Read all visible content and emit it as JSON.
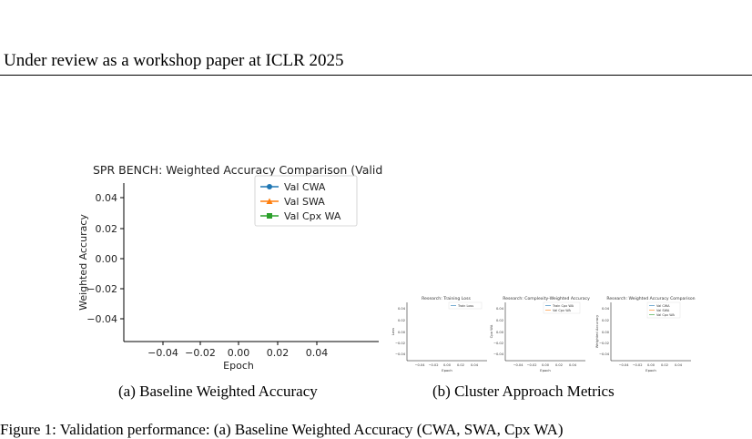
{
  "header": "Under review as a workshop paper at ICLR 2025",
  "figure_a": {
    "caption": "(a)  Baseline Weighted Accuracy",
    "title": "SPR BENCH: Weighted Accuracy Comparison (Validat",
    "xlabel": "Epoch",
    "ylabel": "Weighted Accuracy",
    "x_ticks": [
      "−0.04",
      "−0.02",
      "0.00",
      "0.02",
      "0.04"
    ],
    "y_ticks": [
      "0.04",
      "0.02",
      "0.00",
      "−0.02",
      "−0.04"
    ],
    "legend": [
      "Val CWA",
      "Val SWA",
      "Val Cpx WA"
    ],
    "colors": [
      "#1f77b4",
      "#ff7f0e",
      "#2ca02c"
    ]
  },
  "figure_b": {
    "caption": "(b)  Cluster Approach Metrics",
    "panels": [
      {
        "title": "Research: Training Loss",
        "xlabel": "Epoch",
        "ylabel": "Loss",
        "legend": [
          "Train Loss"
        ]
      },
      {
        "title": "Research: Complexity-Weighted Accuracy",
        "xlabel": "Epoch",
        "ylabel": "Cpx WA",
        "legend": [
          "Train Cpx WA",
          "Val Cpx WA"
        ]
      },
      {
        "title": "Research: Weighted Accuracy Comparison",
        "xlabel": "Epoch",
        "ylabel": "Weighted Accuracy",
        "legend": [
          "Val CWA",
          "Val SWA",
          "Val Cpx WA"
        ]
      }
    ],
    "x_ticks": [
      "−0.04",
      "−0.02",
      "0.00",
      "0.02",
      "0.04"
    ],
    "y_ticks": [
      "0.04",
      "0.02",
      "0.00",
      "−0.02",
      "−0.04"
    ]
  },
  "bottom_text": "Figure 1:  Validation performance:  (a) Baseline Weighted Accuracy (CWA, SWA, Cpx WA)",
  "chart_data": [
    {
      "type": "line",
      "title": "SPR BENCH: Weighted Accuracy Comparison (Validat",
      "xlabel": "Epoch",
      "ylabel": "Weighted Accuracy",
      "xlim": [
        -0.055,
        0.055
      ],
      "ylim": [
        -0.055,
        0.055
      ],
      "series": [
        {
          "name": "Val CWA",
          "values": []
        },
        {
          "name": "Val SWA",
          "values": []
        },
        {
          "name": "Val Cpx WA",
          "values": []
        }
      ],
      "legend": "top-right"
    },
    {
      "type": "line",
      "title": "Research: Training Loss",
      "xlabel": "Epoch",
      "ylabel": "Loss",
      "series": [
        {
          "name": "Train Loss",
          "values": []
        }
      ]
    },
    {
      "type": "line",
      "title": "Research: Complexity-Weighted Accuracy",
      "xlabel": "Epoch",
      "ylabel": "Cpx WA",
      "series": [
        {
          "name": "Train Cpx WA",
          "values": []
        },
        {
          "name": "Val Cpx WA",
          "values": []
        }
      ]
    },
    {
      "type": "line",
      "title": "Research: Weighted Accuracy Comparison",
      "xlabel": "Epoch",
      "ylabel": "Weighted Accuracy",
      "series": [
        {
          "name": "Val CWA",
          "values": []
        },
        {
          "name": "Val SWA",
          "values": []
        },
        {
          "name": "Val Cpx WA",
          "values": []
        }
      ]
    }
  ]
}
